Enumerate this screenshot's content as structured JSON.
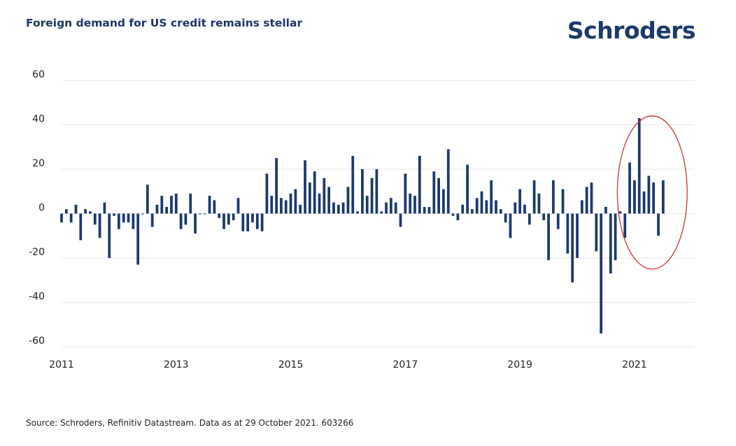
{
  "header": {
    "title": "Foreign demand for US credit remains stellar",
    "brand": "Schroders"
  },
  "footer": {
    "source": "Source: Schroders, Refinitiv Datastream. Data as at 29 October 2021. 603266"
  },
  "colors": {
    "bar": "#1b3a6b",
    "grid": "#e6e6e6",
    "highlight": "#d3303a"
  },
  "chart_data": {
    "type": "bar",
    "title": "Foreign demand for US credit remains stellar",
    "xlabel": "",
    "ylabel": "",
    "ylim": [
      -60,
      60
    ],
    "yticks": [
      60,
      40,
      20,
      0,
      -20,
      -40,
      -60
    ],
    "ytick_labels": [
      "60",
      "40",
      "20",
      "0",
      "-20",
      "-40",
      "-60"
    ],
    "xticks": [
      2011,
      2013,
      2015,
      2017,
      2019,
      2021
    ],
    "xtick_labels": [
      "2011",
      "2013",
      "2015",
      "2017",
      "2019",
      "2021"
    ],
    "x_start": 2011.0,
    "x_end": 2021.917,
    "frequency": "monthly",
    "start_month": "2011-01",
    "values": [
      -4,
      2,
      -4,
      4,
      -12,
      2,
      1,
      -5,
      -11,
      5,
      -20,
      -1,
      -7,
      -4,
      -4,
      -7,
      -23,
      0,
      13,
      -6,
      4,
      8,
      3,
      8,
      9,
      -7,
      -5,
      9,
      -9,
      0,
      0,
      8,
      6,
      -2,
      -7,
      -5,
      -3,
      7,
      -8,
      -8,
      -4,
      -7,
      -8,
      18,
      8,
      25,
      7,
      6,
      9,
      11,
      4,
      24,
      14,
      19,
      9,
      16,
      12,
      5,
      4,
      5,
      12,
      26,
      1,
      20,
      8,
      16,
      20,
      1,
      5,
      7,
      5,
      -6,
      18,
      9,
      8,
      26,
      3,
      3,
      19,
      16,
      11,
      29,
      -1,
      -3,
      4,
      22,
      2,
      7,
      10,
      6,
      15,
      6,
      2,
      -4,
      -11,
      5,
      11,
      4,
      -5,
      15,
      9,
      -3,
      -21,
      15,
      -7,
      11,
      -18,
      -31,
      -20,
      6,
      12,
      14,
      -17,
      -54,
      3,
      -27,
      -21,
      1,
      -11,
      23,
      15,
      43,
      10,
      17,
      14,
      -10,
      15
    ],
    "annotations": [
      {
        "type": "ellipse",
        "color": "#d3303a",
        "description": "highlight",
        "x_range": [
          2020.7,
          2021.92
        ],
        "y_range": [
          -25,
          44
        ]
      }
    ]
  }
}
